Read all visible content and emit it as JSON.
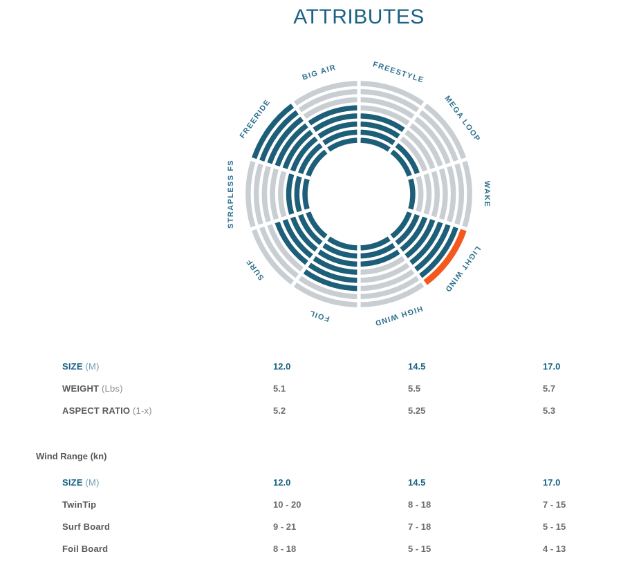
{
  "page": {
    "title": "ATTRIBUTES"
  },
  "colors": {
    "teal": "#1d5e78",
    "gray": "#c9ced3",
    "orange": "#f4581c",
    "label_teal": "#2e7190",
    "accent_text": "#176284",
    "body_text": "#58595b"
  },
  "chart_data": {
    "type": "radial-bar",
    "title": "ATTRIBUTES",
    "rings": 8,
    "max": 8,
    "start_angle_deg": 0,
    "direction": "clockwise",
    "categories": [
      "FREESTYLE",
      "MEGA LOOP",
      "WAKE",
      "LIGHT WIND",
      "HIGH WIND",
      "FOIL",
      "SURF",
      "STRAPLESS FS",
      "FREERIDE",
      "BIG AIR"
    ],
    "values": [
      4,
      2,
      1,
      8,
      3,
      6,
      5,
      3,
      8,
      5
    ],
    "highlight": {
      "category": "LIGHT WIND",
      "ring": 8,
      "color": "#f4581c"
    },
    "legend": "none",
    "filled_color": "#1d5e78",
    "empty_color": "#c9ced3"
  },
  "specs_table": {
    "rows": [
      {
        "label": "SIZE",
        "unit": "(M)",
        "accent": true,
        "values": [
          "12.0",
          "14.5",
          "17.0"
        ]
      },
      {
        "label": "WEIGHT",
        "unit": "(Lbs)",
        "accent": false,
        "values": [
          "5.1",
          "5.5",
          "5.7"
        ]
      },
      {
        "label": "ASPECT RATIO",
        "unit": "(1-x)",
        "accent": false,
        "values": [
          "5.2",
          "5.25",
          "5.3"
        ]
      }
    ]
  },
  "wind_range": {
    "heading": "Wind Range (kn)",
    "rows": [
      {
        "label": "SIZE",
        "unit": "(M)",
        "accent": true,
        "values": [
          "12.0",
          "14.5",
          "17.0"
        ]
      },
      {
        "label": "TwinTip",
        "unit": "",
        "accent": false,
        "values": [
          "10 - 20",
          "8 - 18",
          "7 - 15"
        ]
      },
      {
        "label": "Surf Board",
        "unit": "",
        "accent": false,
        "values": [
          "9 - 21",
          "7 - 18",
          "5 - 15"
        ]
      },
      {
        "label": "Foil Board",
        "unit": "",
        "accent": false,
        "values": [
          "8 - 18",
          "5 - 15",
          "4 - 13"
        ]
      }
    ]
  }
}
